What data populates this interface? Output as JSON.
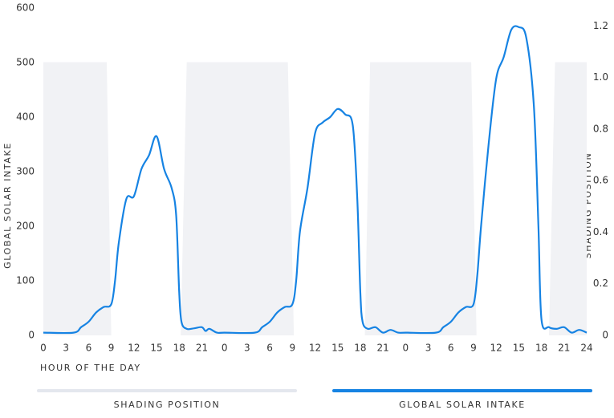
{
  "chart_data": {
    "type": "line",
    "xlabel": "HOUR OF THE DAY",
    "ylabel": "GLOBAL SOLAR INTAKE",
    "y2label": "SHADING POSITION",
    "xlim": [
      0,
      72
    ],
    "xticks": [
      0,
      3,
      6,
      9,
      12,
      15,
      18,
      21,
      {
        "value": 24,
        "label": "0"
      },
      {
        "value": 27,
        "label": "3"
      },
      {
        "value": 30,
        "label": "6"
      },
      {
        "value": 33,
        "label": "9"
      },
      {
        "value": 36,
        "label": "12"
      },
      {
        "value": 39,
        "label": "15"
      },
      {
        "value": 42,
        "label": "18"
      },
      {
        "value": 45,
        "label": "21"
      },
      {
        "value": 48,
        "label": "0"
      },
      {
        "value": 51,
        "label": "3"
      },
      {
        "value": 54,
        "label": "6"
      },
      {
        "value": 57,
        "label": "9"
      },
      {
        "value": 60,
        "label": "12"
      },
      {
        "value": 63,
        "label": "15"
      },
      {
        "value": 66,
        "label": "18"
      },
      {
        "value": 69,
        "label": "21"
      },
      {
        "value": 72,
        "label": "24"
      }
    ],
    "ylim": [
      0,
      600
    ],
    "yticks": [
      0,
      100,
      200,
      300,
      400,
      500,
      600
    ],
    "y2lim": [
      0,
      1.27
    ],
    "y2ticks": [
      0,
      0.2,
      0.4,
      0.6,
      0.8,
      {
        "value": 1,
        "label": "1.0"
      },
      1.2
    ],
    "series": [
      {
        "name": "SHADING POSITION",
        "color": "#e4e7ee",
        "fill": "#f1f2f5",
        "axis": "y2",
        "style": "area",
        "x": [
          0,
          8.4,
          9,
          18.2,
          19,
          32.4,
          33.2,
          42.6,
          43.3,
          56.7,
          57.4,
          67,
          67.8,
          72
        ],
        "values": [
          1.06,
          1.06,
          0,
          0,
          1.06,
          1.06,
          0,
          0,
          1.06,
          1.06,
          0,
          0,
          1.06,
          1.06
        ]
      },
      {
        "name": "GLOBAL SOLAR INTAKE",
        "color": "#1683e3",
        "style": "line",
        "x": [
          0,
          4,
          5,
          6,
          7,
          8,
          9,
          9.5,
          10,
          11,
          12,
          13,
          14,
          15,
          16,
          17,
          17.6,
          18,
          18.3,
          19,
          20,
          21,
          21.5,
          22,
          23,
          24,
          28,
          29,
          30,
          31,
          32,
          33,
          33.5,
          34,
          35,
          36,
          37,
          38,
          39,
          40,
          41,
          41.6,
          42,
          42.3,
          43,
          44,
          45,
          46,
          47,
          48,
          52,
          53,
          54,
          55,
          56,
          57,
          57.5,
          58,
          59,
          60,
          61,
          62,
          63,
          64,
          65,
          65.6,
          66,
          67,
          68,
          69,
          70,
          71,
          72
        ],
        "values": [
          5,
          5,
          15,
          25,
          42,
          52,
          57,
          100,
          170,
          250,
          255,
          305,
          330,
          365,
          305,
          270,
          220,
          80,
          25,
          12,
          13,
          15,
          8,
          12,
          5,
          5,
          5,
          15,
          25,
          42,
          52,
          57,
          100,
          190,
          270,
          370,
          390,
          400,
          415,
          405,
          385,
          250,
          80,
          25,
          12,
          15,
          5,
          10,
          5,
          5,
          5,
          15,
          25,
          42,
          52,
          57,
          110,
          200,
          350,
          470,
          510,
          560,
          565,
          545,
          420,
          200,
          30,
          15,
          12,
          15,
          5,
          10,
          5
        ]
      }
    ]
  }
}
